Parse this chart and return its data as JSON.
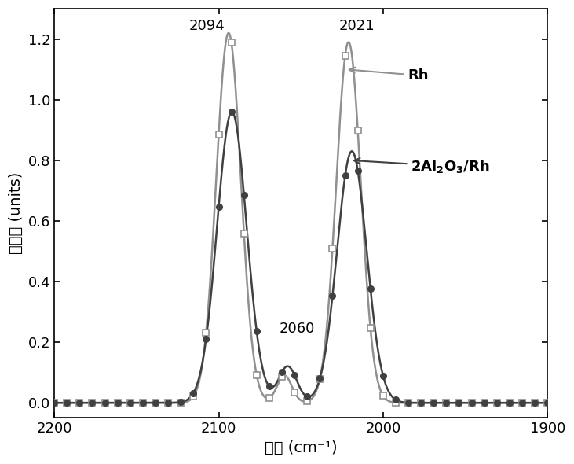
{
  "xlabel": "波数 (cm⁻¹)",
  "ylabel": "吸光度 (units)",
  "xlim": [
    2200,
    1900
  ],
  "ylim": [
    -0.05,
    1.3
  ],
  "yticks": [
    0.0,
    0.2,
    0.4,
    0.6,
    0.8,
    1.0,
    1.2
  ],
  "xticks": [
    2200,
    2100,
    2000,
    1900
  ],
  "rh_color": "#909090",
  "al2o3rh_color": "#404040",
  "legend_rh": "Rh",
  "ann_2094": "2094",
  "ann_2021": "2021",
  "ann_2060": "2060"
}
